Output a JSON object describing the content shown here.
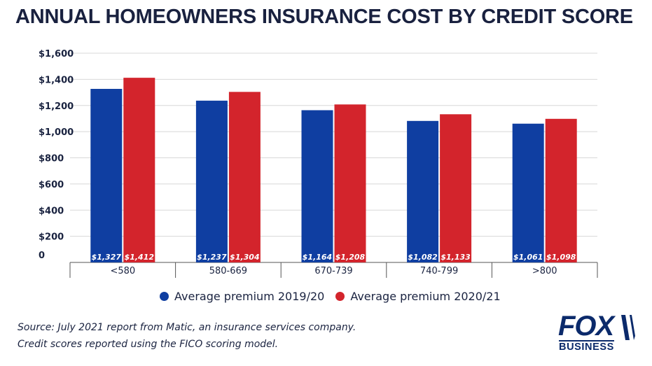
{
  "chart_data": {
    "type": "bar",
    "title": "ANNUAL HOMEOWNERS INSURANCE COST BY CREDIT SCORE",
    "categories": [
      "<580",
      "580-669",
      "670-739",
      "740-799",
      ">800"
    ],
    "series": [
      {
        "name": "Average premium 2019/20",
        "color": "#0f3ea1",
        "values": [
          1327,
          1237,
          1164,
          1082,
          1061
        ],
        "labels": [
          "$1,327",
          "$1,237",
          "$1,164",
          "$1,082",
          "$1,061"
        ]
      },
      {
        "name": "Average premium 2020/21",
        "color": "#d3242c",
        "values": [
          1412,
          1304,
          1208,
          1133,
          1098
        ],
        "labels": [
          "$1,412",
          "$1,304",
          "$1,208",
          "$1,133",
          "$1,098"
        ]
      }
    ],
    "ylim": [
      0,
      1600
    ],
    "yticks": [
      0,
      200,
      400,
      600,
      800,
      1000,
      1200,
      1400,
      1600
    ],
    "ytick_labels": [
      "0",
      "$200",
      "$400",
      "$600",
      "$800",
      "$1,000",
      "$1,200",
      "$1,400",
      "$1,600"
    ],
    "grid": true,
    "legend_position": "bottom"
  },
  "footer": {
    "source_line1": "Source: July 2021 report from Matic, an insurance services company.",
    "source_line2": "Credit scores reported using the FICO scoring model."
  },
  "logo": {
    "top": "FOX",
    "bottom": "BUSINESS",
    "color": "#0b2a6b"
  }
}
